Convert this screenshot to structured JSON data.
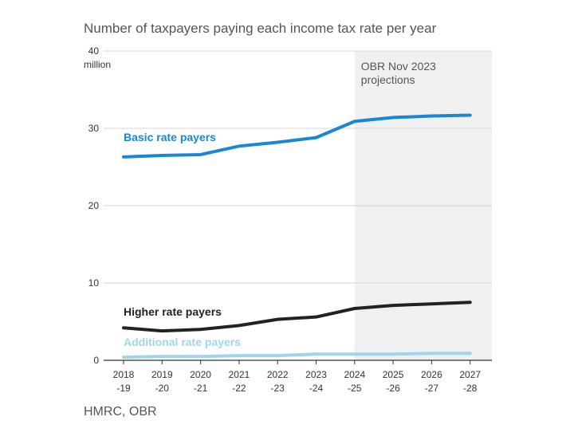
{
  "title": "Number of taxpayers paying each income tax rate per year",
  "source": "HMRC, OBR",
  "chart_data": {
    "type": "line",
    "title": "Number of taxpayers paying each income tax rate per year",
    "ylabel": "million",
    "ylim": [
      0,
      40
    ],
    "yticks": [
      0,
      10,
      20,
      30,
      40
    ],
    "grid": true,
    "categories": [
      "2018-19",
      "2019-20",
      "2020-21",
      "2021-22",
      "2022-23",
      "2023-24",
      "2024-25",
      "2025-26",
      "2026-27",
      "2027-28"
    ],
    "x_tick_labels": [
      [
        "2018",
        "-19"
      ],
      [
        "2019",
        "-20"
      ],
      [
        "2020",
        "-21"
      ],
      [
        "2021",
        "-22"
      ],
      [
        "2022",
        "-23"
      ],
      [
        "2023",
        "-24"
      ],
      [
        "2024",
        "-25"
      ],
      [
        "2025",
        "-26"
      ],
      [
        "2026",
        "-27"
      ],
      [
        "2027",
        "-28"
      ]
    ],
    "shaded_region": {
      "from": "2024-25",
      "to": "2027-28",
      "label_lines": [
        "OBR Nov 2023",
        "projections"
      ]
    },
    "series": [
      {
        "name": "Basic rate payers",
        "color": "#1a87d6",
        "values": [
          26.3,
          26.5,
          26.6,
          27.7,
          28.2,
          28.8,
          30.9,
          31.4,
          31.6,
          31.7
        ]
      },
      {
        "name": "Higher rate payers",
        "color": "#222222",
        "values": [
          4.2,
          3.8,
          4.0,
          4.5,
          5.3,
          5.6,
          6.7,
          7.1,
          7.3,
          7.5
        ]
      },
      {
        "name": "Additional rate payers",
        "color": "#9fd4f0",
        "values": [
          0.4,
          0.5,
          0.5,
          0.6,
          0.6,
          0.8,
          0.8,
          0.8,
          0.9,
          0.9
        ]
      }
    ]
  }
}
